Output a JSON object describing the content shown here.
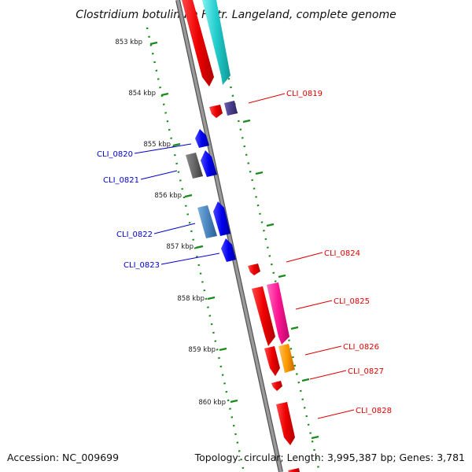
{
  "title": "Clostridium botulinum F str. Langeland, complete genome",
  "accession": "Accession: NC_009699",
  "summary": "Topology: circular; Length: 3,995,387 bp; Genes: 3,781",
  "kbp_labels": [
    "853 kbp",
    "854 kbp",
    "855 kbp",
    "856 kbp",
    "857 kbp",
    "858 kbp",
    "859 kbp",
    "860 kbp"
  ],
  "genes": {
    "forward": [
      "CLI_0819",
      "CLI_0824",
      "CLI_0825",
      "CLI_0826",
      "CLI_0827",
      "CLI_0828"
    ],
    "reverse": [
      "CLI_0820",
      "CLI_0821",
      "CLI_0822",
      "CLI_0823"
    ]
  },
  "colors": {
    "forward_label": "#e00000",
    "reverse_label": "#0000cc",
    "backbone": "#8c8c8c",
    "tick": "#1a8a1a"
  }
}
